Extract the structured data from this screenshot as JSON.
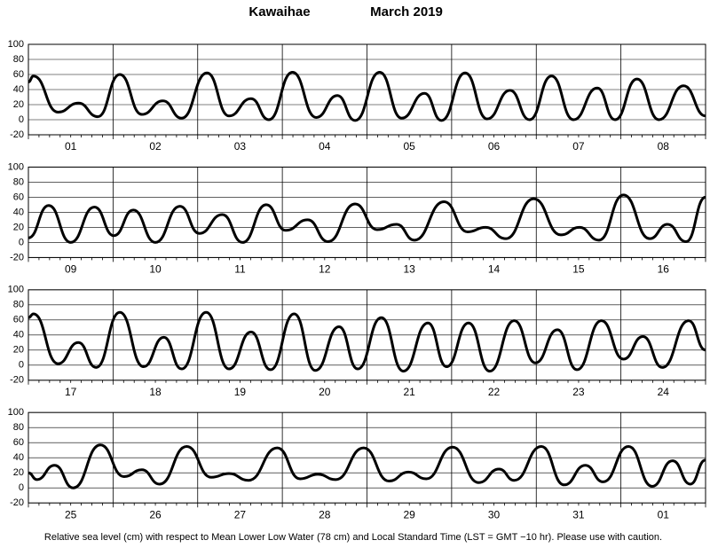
{
  "title": "Kawaihae",
  "subtitle": "March   2019",
  "footnote": "Relative sea level (cm) with respect to Mean Lower Low Water (78 cm) and Local Standard Time (LST = GMT −10 hr). Please use with caution.",
  "chart_data": [
    {
      "type": "line",
      "categories": [
        "01",
        "02",
        "03",
        "04",
        "05",
        "06",
        "07",
        "08"
      ],
      "xlim": [
        0,
        8
      ],
      "xticks": [
        0,
        1,
        2,
        3,
        4,
        5,
        6,
        7,
        8
      ],
      "ylim": [
        -20,
        100
      ],
      "yticks": [
        -20,
        0,
        20,
        40,
        60,
        80,
        100
      ],
      "grid": true,
      "color": "#000000",
      "x": [
        0,
        0.06,
        0.35,
        0.59,
        0.82,
        1.08,
        1.34,
        1.59,
        1.81,
        2.11,
        2.37,
        2.63,
        2.84,
        3.12,
        3.4,
        3.65,
        3.86,
        4.15,
        4.41,
        4.68,
        4.88,
        5.16,
        5.42,
        5.69,
        5.92,
        6.18,
        6.44,
        6.72,
        6.93,
        7.19,
        7.45,
        7.74,
        8.0
      ],
      "values": [
        50,
        58,
        10,
        22,
        4,
        60,
        7,
        25,
        2,
        62,
        5,
        28,
        0,
        63,
        3,
        32,
        -1,
        63,
        2,
        35,
        -1,
        62,
        1,
        39,
        0,
        58,
        0,
        42,
        0,
        54,
        0,
        45,
        5
      ]
    },
    {
      "type": "line",
      "categories": [
        "09",
        "10",
        "11",
        "12",
        "13",
        "14",
        "15",
        "16"
      ],
      "xlim": [
        0,
        8
      ],
      "xticks": [
        0,
        1,
        2,
        3,
        4,
        5,
        6,
        7,
        8
      ],
      "ylim": [
        -20,
        100
      ],
      "yticks": [
        -20,
        0,
        20,
        40,
        60,
        80,
        100
      ],
      "grid": true,
      "color": "#000000",
      "x": [
        0,
        0.24,
        0.5,
        0.78,
        1.01,
        1.24,
        1.5,
        1.79,
        2.02,
        2.29,
        2.53,
        2.81,
        3.04,
        3.3,
        3.54,
        3.86,
        4.12,
        4.35,
        4.56,
        4.91,
        5.19,
        5.4,
        5.64,
        5.97,
        6.29,
        6.51,
        6.74,
        7.03,
        7.34,
        7.55,
        7.77,
        8.0
      ],
      "values": [
        6,
        49,
        0,
        47,
        9,
        43,
        0,
        48,
        12,
        37,
        0,
        50,
        16,
        30,
        1,
        51,
        17,
        24,
        3,
        54,
        14,
        20,
        5,
        58,
        10,
        20,
        3,
        63,
        5,
        24,
        1,
        60
      ]
    },
    {
      "type": "line",
      "categories": [
        "17",
        "18",
        "19",
        "20",
        "21",
        "22",
        "23",
        "24"
      ],
      "xlim": [
        0,
        8
      ],
      "xticks": [
        0,
        1,
        2,
        3,
        4,
        5,
        6,
        7,
        8
      ],
      "ylim": [
        -20,
        100
      ],
      "yticks": [
        -20,
        0,
        20,
        40,
        60,
        80,
        100
      ],
      "grid": true,
      "color": "#000000",
      "x": [
        0,
        0.06,
        0.35,
        0.59,
        0.8,
        1.08,
        1.36,
        1.6,
        1.81,
        2.1,
        2.37,
        2.63,
        2.86,
        3.14,
        3.39,
        3.67,
        3.89,
        4.17,
        4.43,
        4.72,
        4.94,
        5.2,
        5.45,
        5.74,
        5.99,
        6.25,
        6.48,
        6.77,
        7.03,
        7.26,
        7.49,
        7.8,
        8.0
      ],
      "values": [
        63,
        68,
        2,
        30,
        -3,
        70,
        -2,
        37,
        -5,
        70,
        -5,
        44,
        -6,
        68,
        -7,
        51,
        -5,
        63,
        -8,
        56,
        -2,
        56,
        -8,
        59,
        3,
        47,
        -6,
        59,
        8,
        38,
        -3,
        59,
        20
      ]
    },
    {
      "type": "line",
      "categories": [
        "25",
        "26",
        "27",
        "28",
        "29",
        "30",
        "31",
        "01"
      ],
      "xlim": [
        0,
        8
      ],
      "xticks": [
        0,
        1,
        2,
        3,
        4,
        5,
        6,
        7,
        8
      ],
      "ylim": [
        -20,
        100
      ],
      "yticks": [
        -20,
        0,
        20,
        40,
        60,
        80,
        100
      ],
      "grid": true,
      "color": "#000000",
      "x": [
        0,
        0.1,
        0.31,
        0.53,
        0.85,
        1.13,
        1.34,
        1.55,
        1.87,
        2.16,
        2.37,
        2.6,
        2.94,
        3.21,
        3.42,
        3.63,
        3.96,
        4.26,
        4.49,
        4.7,
        5.01,
        5.32,
        5.56,
        5.74,
        6.06,
        6.33,
        6.58,
        6.79,
        7.09,
        7.37,
        7.61,
        7.82,
        8.0
      ],
      "values": [
        20,
        11,
        30,
        0,
        57,
        15,
        24,
        5,
        55,
        14,
        19,
        10,
        53,
        12,
        18,
        11,
        53,
        9,
        21,
        12,
        54,
        7,
        25,
        10,
        55,
        4,
        30,
        8,
        55,
        2,
        36,
        5,
        37
      ]
    }
  ]
}
